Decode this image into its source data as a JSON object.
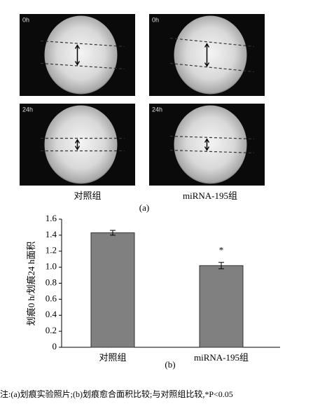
{
  "panel_a": {
    "images": [
      {
        "label": "0h"
      },
      {
        "label": "0h"
      },
      {
        "label": "24h"
      },
      {
        "label": "24h"
      }
    ],
    "columns": [
      "对照组",
      "miRNA-195组"
    ],
    "caption": "(a)"
  },
  "chart_data": {
    "type": "bar",
    "y_label": "划痕0 h/划痕24 h面积",
    "categories": [
      "对照组",
      "miRNA-195组"
    ],
    "values": [
      1.43,
      1.02
    ],
    "errors": [
      0.03,
      0.04
    ],
    "value_labels": [
      null,
      "*"
    ],
    "color": "#808080",
    "ylim": [
      0,
      1.6
    ],
    "yticks": [
      0,
      0.2,
      0.4,
      0.6,
      0.8,
      {
        "value": 1,
        "label": "1.0"
      },
      1.2,
      1.4,
      1.6
    ],
    "caption": "(b)"
  },
  "note": "注:(a)划痕实验照片;(b)划痕愈合面积比较;与对照组比较,*P<0.05"
}
